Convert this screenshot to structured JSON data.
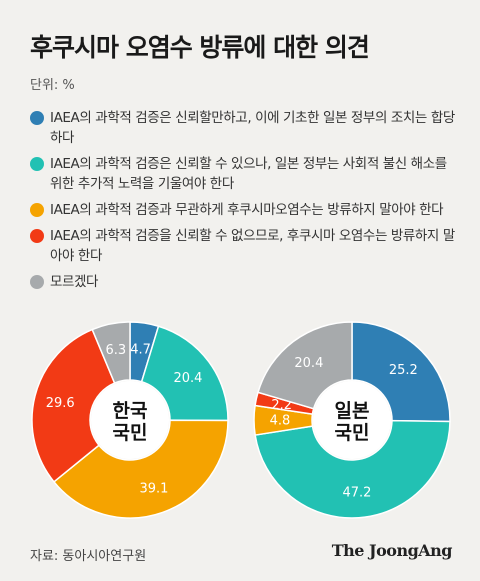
{
  "title": "후쿠시마 오염수 방류에 대한 의견",
  "unit": "단위: %",
  "legend": [
    {
      "label": "IAEA의 과학적 검증은 신뢰할만하고, 이에 기초한 일본 정부의 조치는 합당하다",
      "color": "#2f7fb4"
    },
    {
      "label": "IAEA의 과학적 검증은 신뢰할 수 있으나, 일본 정부는 사회적 불신 해소를 위한 추가적 노력을 기울여야 한다",
      "color": "#22c1b3"
    },
    {
      "label": "IAEA의 과학적 검증과 무관하게 후쿠시마오염수는 방류하지 말아야 한다",
      "color": "#f5a300"
    },
    {
      "label": "IAEA의 과학적 검증을 신뢰할 수 없으므로, 후쿠시마 오염수는 방류하지 말아야 한다",
      "color": "#f23a15"
    },
    {
      "label": "모르겠다",
      "color": "#a7aaac"
    }
  ],
  "chart_data": [
    {
      "type": "pie",
      "title": "한국 국민",
      "categories": [
        "신뢰·합당",
        "신뢰·추가 노력",
        "무관하게 방류 반대",
        "불신·방류 반대",
        "모르겠다"
      ],
      "values": [
        4.7,
        20.4,
        39.1,
        29.6,
        6.3
      ],
      "labels": [
        "4.7",
        "20.4",
        "39.1",
        "29.6",
        "6.3"
      ],
      "colors": [
        "#2f7fb4",
        "#22c1b3",
        "#f5a300",
        "#f23a15",
        "#a7aaac"
      ]
    },
    {
      "type": "pie",
      "title": "일본 국민",
      "categories": [
        "신뢰·합당",
        "신뢰·추가 노력",
        "무관하게 방류 반대",
        "불신·방류 반대",
        "모르겠다"
      ],
      "values": [
        25.2,
        47.2,
        4.8,
        2.2,
        20.4
      ],
      "labels": [
        "25.2",
        "47.2",
        "4.8",
        "2.2",
        "20.4"
      ],
      "colors": [
        "#2f7fb4",
        "#22c1b3",
        "#f5a300",
        "#f23a15",
        "#a7aaac"
      ]
    }
  ],
  "center_labels": [
    {
      "line1": "한국",
      "line2": "국민"
    },
    {
      "line1": "일본",
      "line2": "국민"
    }
  ],
  "source": "자료: 동아시아연구원",
  "logo": "The JoongAng"
}
